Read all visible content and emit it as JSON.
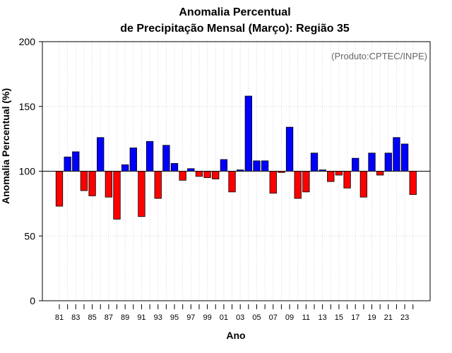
{
  "chart_data": {
    "type": "bar",
    "title_line1": "Anomalia Percentual",
    "title_line2": "de Precipitação Mensal (Março): Região 35",
    "ylabel": "Anomalia Percentual (%)",
    "xlabel": "Ano",
    "credit": "(Produto:CPTEC/INPE)",
    "baseline": 100,
    "ylim": [
      0,
      200
    ],
    "yticks": [
      0,
      50,
      100,
      150,
      200
    ],
    "grid": true,
    "colors": {
      "above": "#0000ff",
      "below": "#ff0000",
      "edge": "#000000",
      "grid": "#cccccc"
    },
    "x": [
      1981,
      1982,
      1983,
      1984,
      1985,
      1986,
      1987,
      1988,
      1989,
      1990,
      1991,
      1992,
      1993,
      1994,
      1995,
      1996,
      1997,
      1998,
      1999,
      2000,
      2001,
      2002,
      2003,
      2004,
      2005,
      2006,
      2007,
      2008,
      2009,
      2010,
      2011,
      2012,
      2013,
      2014,
      2015,
      2016,
      2017,
      2018,
      2019,
      2020,
      2021,
      2022,
      2023,
      2024
    ],
    "xtick_labels": [
      "81",
      "",
      "83",
      "",
      "85",
      "",
      "87",
      "",
      "89",
      "",
      "91",
      "",
      "93",
      "",
      "95",
      "",
      "97",
      "",
      "99",
      "",
      "01",
      "",
      "03",
      "",
      "05",
      "",
      "07",
      "",
      "09",
      "",
      "11",
      "",
      "13",
      "",
      "15",
      "",
      "17",
      "",
      "19",
      "",
      "21",
      "",
      "23",
      ""
    ],
    "values": [
      73,
      111,
      115,
      85,
      81,
      126,
      80,
      63,
      105,
      118,
      65,
      123,
      79,
      120,
      106,
      93,
      102,
      96,
      95,
      94,
      109,
      84,
      101,
      158,
      108,
      108,
      83,
      99,
      134,
      79,
      84,
      114,
      101,
      92,
      97,
      87,
      110,
      80,
      114,
      97,
      114,
      126,
      121,
      82
    ]
  }
}
